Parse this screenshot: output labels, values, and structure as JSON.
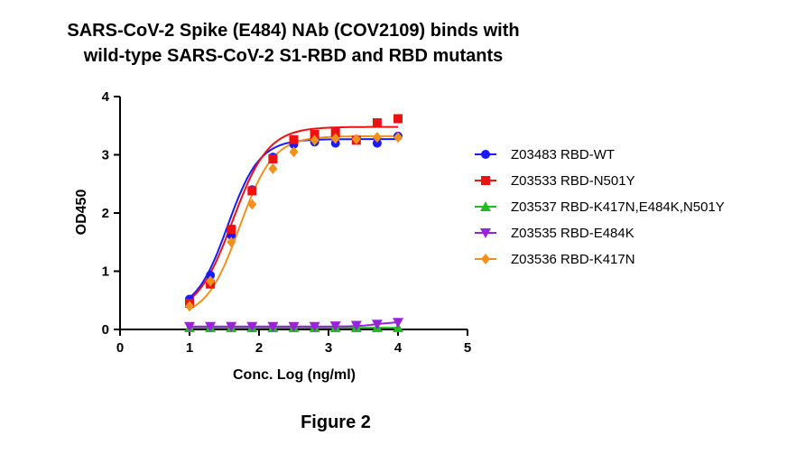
{
  "chart_data": {
    "type": "scatter",
    "title_lines": [
      "SARS-CoV-2 Spike (E484) NAb (COV2109) binds with",
      "wild-type SARS-CoV-2 S1-RBD and RBD mutants"
    ],
    "xlabel": "Conc. Log (ng/ml)",
    "ylabel": "OD450",
    "xlim": [
      0,
      5
    ],
    "ylim": [
      0,
      4
    ],
    "xticks": [
      "0",
      "1",
      "2",
      "3",
      "4",
      "5"
    ],
    "yticks": [
      "0",
      "1",
      "2",
      "3",
      "4"
    ],
    "grid": false,
    "legend_position": "right",
    "fitted_curves": true,
    "x": [
      1.0,
      1.3,
      1.6,
      1.9,
      2.2,
      2.5,
      2.8,
      3.1,
      3.4,
      3.7,
      4.0
    ],
    "series": [
      {
        "name": "Z03483 RBD-WT",
        "color": "#1a1aff",
        "marker": "circle",
        "values": [
          0.52,
          0.93,
          1.62,
          2.4,
          2.96,
          3.18,
          3.22,
          3.2,
          3.26,
          3.2,
          3.32
        ],
        "fit": {
          "bottom": 0.3,
          "top": 3.27,
          "ec50": 1.55,
          "hill": 1.9
        }
      },
      {
        "name": "Z03533 RBD-N501Y",
        "color": "#ee1111",
        "marker": "square",
        "values": [
          0.45,
          0.78,
          1.72,
          2.38,
          2.93,
          3.26,
          3.35,
          3.38,
          3.25,
          3.55,
          3.62
        ],
        "fit": {
          "bottom": 0.25,
          "top": 3.48,
          "ec50": 1.62,
          "hill": 1.7
        }
      },
      {
        "name": "Z03537 RBD-K417N,E484K,N501Y",
        "color": "#22bb22",
        "marker": "triangle-up",
        "values": [
          0.03,
          0.03,
          0.03,
          0.03,
          0.03,
          0.03,
          0.03,
          0.03,
          0.03,
          0.03,
          0.03
        ],
        "fit": {
          "bottom": 0.03,
          "top": 0.03,
          "ec50": 2.5,
          "hill": 1.0
        }
      },
      {
        "name": "Z03535 RBD-E484K",
        "color": "#9922dd",
        "marker": "triangle-down",
        "values": [
          0.05,
          0.05,
          0.05,
          0.05,
          0.05,
          0.05,
          0.05,
          0.06,
          0.07,
          0.09,
          0.12
        ],
        "fit": {
          "bottom": 0.05,
          "top": 0.13,
          "ec50": 3.7,
          "hill": 3.0
        }
      },
      {
        "name": "Z03536 RBD-K417N",
        "color": "#f0901e",
        "marker": "diamond",
        "values": [
          0.4,
          0.83,
          1.5,
          2.15,
          2.76,
          3.05,
          3.25,
          3.28,
          3.27,
          3.3,
          3.3
        ],
        "fit": {
          "bottom": 0.2,
          "top": 3.32,
          "ec50": 1.72,
          "hill": 1.8
        }
      }
    ]
  },
  "caption": "Figure 2"
}
